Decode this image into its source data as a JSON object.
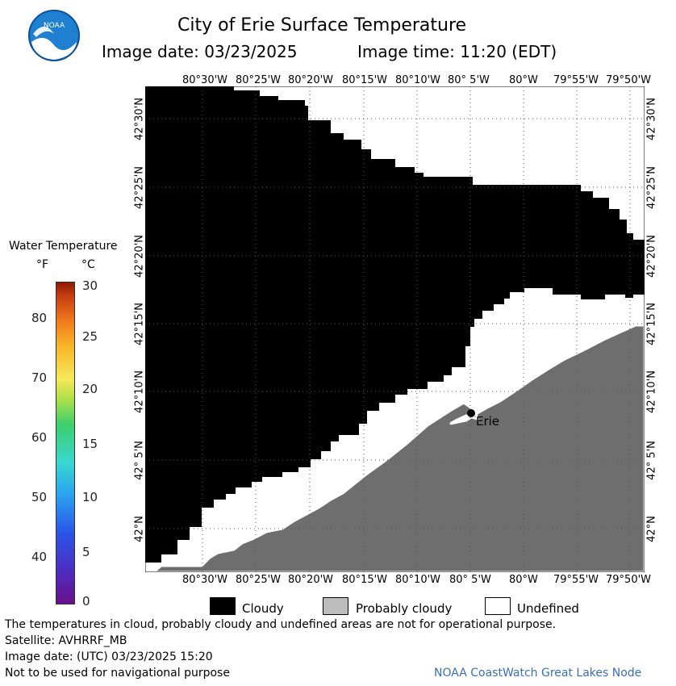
{
  "header": {
    "title": "City of Erie Surface Temperature",
    "image_date": "Image date: 03/23/2025",
    "image_time": "Image time: 11:20 (EDT)",
    "logo_text": "NOAA"
  },
  "colorbar": {
    "title": "Water Temperature",
    "unit_f": "°F",
    "unit_c": "°C",
    "f_ticks": [
      "80",
      "70",
      "60",
      "50",
      "40"
    ],
    "c_ticks": [
      "30",
      "25",
      "20",
      "15",
      "10",
      "5",
      "0"
    ]
  },
  "map": {
    "lon_labels": [
      "80°30'W",
      "80°25'W",
      "80°20'W",
      "80°15'W",
      "80°10'W",
      "80° 5'W",
      "80°W",
      "79°55'W",
      "79°50'W"
    ],
    "lon_labels_top_6": "80° 5'W",
    "lat_labels": [
      "42°30'N",
      "42°25'N",
      "42°20'N",
      "42°15'N",
      "42°10'N",
      "42° 5'N",
      "42°N"
    ],
    "city_label": "Erie",
    "colors": {
      "cloudy": "#000000",
      "land": "#6e6e6e",
      "undefined": "#ffffff",
      "grid": "#555555"
    }
  },
  "legend": {
    "cloudy": "Cloudy",
    "probably_cloudy": "Probably cloudy",
    "undefined": "Undefined",
    "colors": {
      "cloudy": "#000000",
      "probably_cloudy": "#bdbdbd",
      "undefined": "#ffffff"
    }
  },
  "footer": {
    "note": "The temperatures in cloud, probably cloudy and undefined areas are not for operational purpose.",
    "satellite": "Satellite: AVHRRF_MB",
    "utc_date": "Image date: (UTC) 03/23/2025  15:20",
    "nav_warning": "Not to be used for navigational purpose",
    "credit": "NOAA CoastWatch Great Lakes Node",
    "credit_color": "#3a6fb5"
  }
}
